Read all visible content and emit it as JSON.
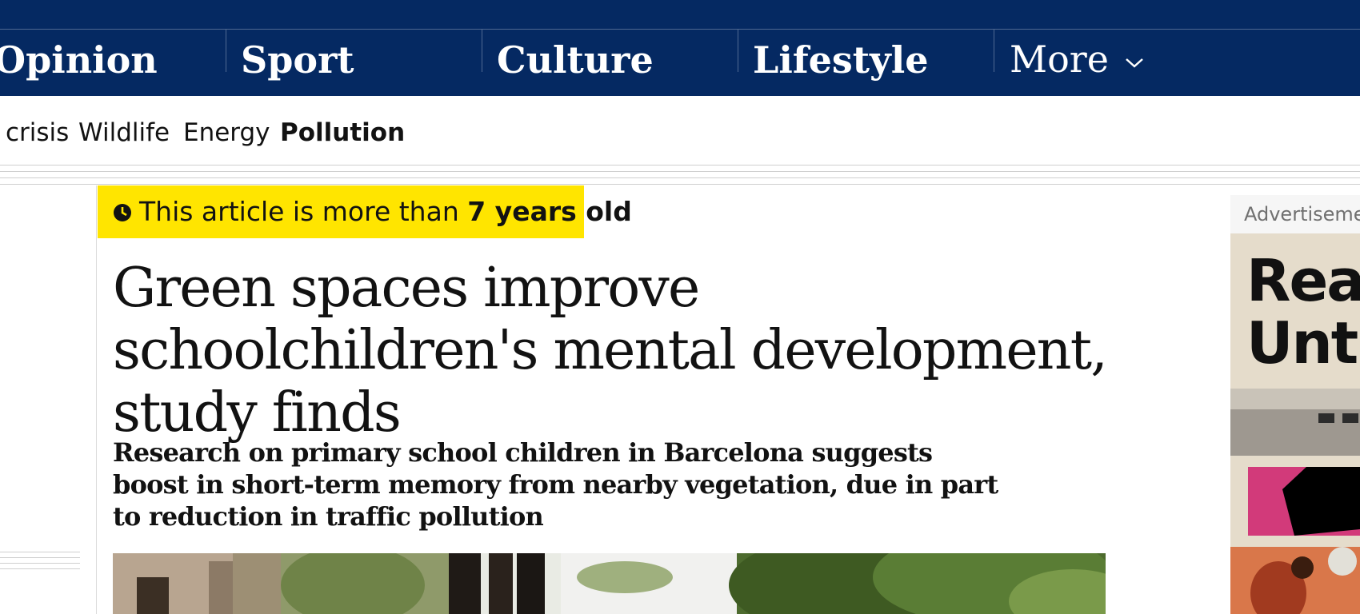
{
  "nav": {
    "pillars": [
      "Opinion",
      "Sport",
      "Culture",
      "Lifestyle"
    ],
    "more_label": "More"
  },
  "subnav": {
    "items": [
      "crisis",
      "Wildlife",
      "Energy",
      "Pollution"
    ],
    "active": "Pollution"
  },
  "age_warning": {
    "prefix": "This article is more than ",
    "age": "7 years old"
  },
  "article": {
    "headline": "Green spaces improve schoolchildren's mental development, study finds",
    "standfirst": "Research on primary school children in Barcelona suggests boost in short-term memory from nearby vegetation, due in part to reduction in traffic pollution"
  },
  "ad": {
    "label": "Advertisement",
    "text_line1": "Rea",
    "text_line2": "Unt"
  },
  "colors": {
    "nav_bg": "#052962",
    "age_bg": "#ffe500",
    "text": "#121212"
  },
  "icons": {
    "clock": "clock-icon",
    "chevron": "chevron-down-icon"
  }
}
